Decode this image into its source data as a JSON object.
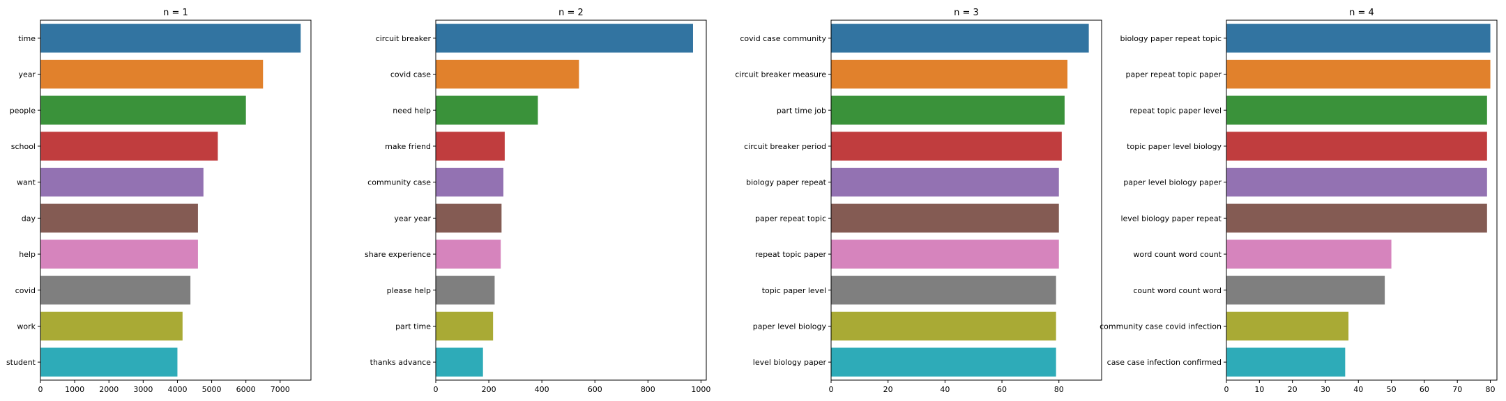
{
  "figure": {
    "bar_colors": [
      "#3274a1",
      "#e1812c",
      "#3a923a",
      "#c03d3e",
      "#9372b2",
      "#845b53",
      "#d684bd",
      "#7f7f7f",
      "#a9aa35",
      "#2eabb8"
    ]
  },
  "chart_data": [
    {
      "type": "bar",
      "orientation": "horizontal",
      "title": "n = 1",
      "xlabel": "",
      "ylabel": "",
      "categories": [
        "time",
        "year",
        "people",
        "school",
        "want",
        "day",
        "help",
        "covid",
        "work",
        "student"
      ],
      "values": [
        7600,
        6500,
        6000,
        5180,
        4760,
        4600,
        4600,
        4380,
        4150,
        4000
      ],
      "xlim": [
        0,
        7900
      ],
      "xticks": [
        0,
        1000,
        2000,
        3000,
        4000,
        5000,
        6000,
        7000
      ],
      "grid": false,
      "legend": "none"
    },
    {
      "type": "bar",
      "orientation": "horizontal",
      "title": "n = 2",
      "xlabel": "",
      "ylabel": "",
      "categories": [
        "circuit breaker",
        "covid case",
        "need help",
        "make friend",
        "community case",
        "year year",
        "share experience",
        "please help",
        "part time",
        "thanks advance"
      ],
      "values": [
        970,
        540,
        385,
        260,
        255,
        248,
        245,
        222,
        216,
        178
      ],
      "xlim": [
        0,
        1020
      ],
      "xticks": [
        0,
        200,
        400,
        600,
        800,
        1000
      ],
      "grid": false,
      "legend": "none"
    },
    {
      "type": "bar",
      "orientation": "horizontal",
      "title": "n = 3",
      "xlabel": "",
      "ylabel": "",
      "categories": [
        "covid case community",
        "circuit breaker measure",
        "part time job",
        "circuit breaker period",
        "biology paper repeat",
        "paper repeat topic",
        "repeat topic paper",
        "topic paper level",
        "paper level biology",
        "level biology paper"
      ],
      "values": [
        90.5,
        83,
        82,
        81,
        80,
        80,
        80,
        79,
        79,
        79
      ],
      "xlim": [
        0,
        95
      ],
      "xticks": [
        0,
        20,
        40,
        60,
        80
      ],
      "grid": false,
      "legend": "none"
    },
    {
      "type": "bar",
      "orientation": "horizontal",
      "title": "n = 4",
      "xlabel": "",
      "ylabel": "",
      "categories": [
        "biology paper repeat topic",
        "paper repeat topic paper",
        "repeat topic paper level",
        "topic paper level biology",
        "paper level biology paper",
        "level biology paper repeat",
        "word count word count",
        "count word count word",
        "community case covid infection",
        "case case infection confirmed"
      ],
      "values": [
        80,
        80,
        79,
        79,
        79,
        79,
        50,
        48,
        37,
        36
      ],
      "xlim": [
        0,
        82
      ],
      "xticks": [
        0,
        10,
        20,
        30,
        40,
        50,
        60,
        70,
        80
      ],
      "grid": false,
      "legend": "none"
    }
  ]
}
